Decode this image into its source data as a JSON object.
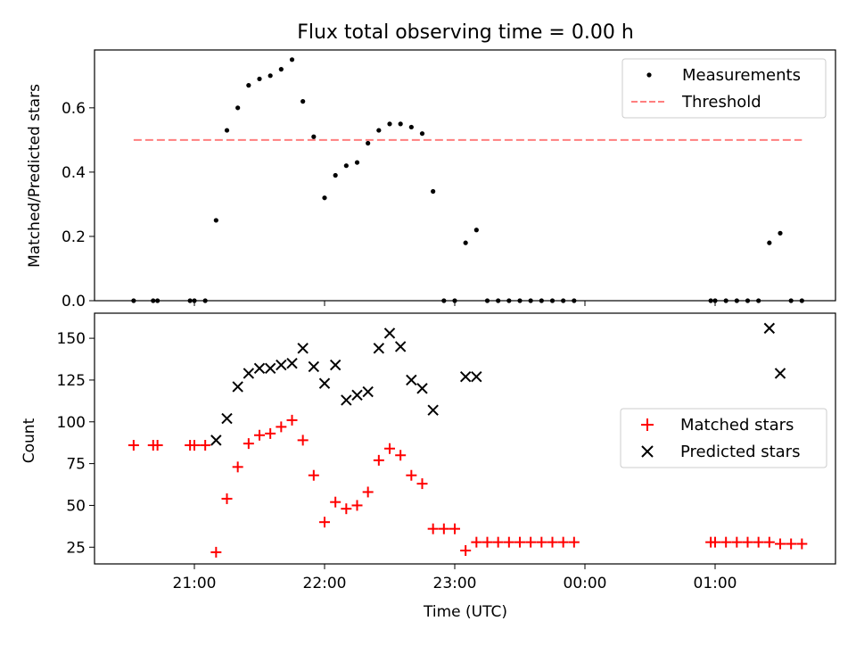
{
  "chart_data": [
    {
      "type": "scatter",
      "title": "Flux total observing time = 0.00 h",
      "ylabel": "Matched/Predicted stars",
      "xlabel": "",
      "ylim": [
        0,
        0.78
      ],
      "yticks": [
        "0.0",
        "0.2",
        "0.4",
        "0.6"
      ],
      "ytick_values": [
        0,
        0.2,
        0.4,
        0.6
      ],
      "legend": {
        "position": "top-right",
        "entries": [
          "Measurements",
          "Threshold"
        ]
      },
      "threshold": {
        "name": "Threshold",
        "value": 0.5,
        "x_from": "20:32",
        "x_to": "01:40",
        "color": "#ff7f7f",
        "style": "dashed"
      },
      "series": [
        {
          "name": "Measurements",
          "marker": "dot",
          "color": "#000000",
          "points": [
            [
              "20:32",
              0
            ],
            [
              "20:41",
              0
            ],
            [
              "20:43",
              0
            ],
            [
              "20:58",
              0
            ],
            [
              "21:00",
              0
            ],
            [
              "21:05",
              0
            ],
            [
              "21:10",
              0.25
            ],
            [
              "21:15",
              0.53
            ],
            [
              "21:20",
              0.6
            ],
            [
              "21:25",
              0.67
            ],
            [
              "21:30",
              0.69
            ],
            [
              "21:35",
              0.7
            ],
            [
              "21:40",
              0.72
            ],
            [
              "21:45",
              0.75
            ],
            [
              "21:50",
              0.62
            ],
            [
              "21:55",
              0.51
            ],
            [
              "22:00",
              0.32
            ],
            [
              "22:05",
              0.39
            ],
            [
              "22:10",
              0.42
            ],
            [
              "22:15",
              0.43
            ],
            [
              "22:20",
              0.49
            ],
            [
              "22:25",
              0.53
            ],
            [
              "22:30",
              0.55
            ],
            [
              "22:35",
              0.55
            ],
            [
              "22:40",
              0.54
            ],
            [
              "22:45",
              0.52
            ],
            [
              "22:50",
              0.34
            ],
            [
              "22:55",
              0
            ],
            [
              "23:00",
              0
            ],
            [
              "23:05",
              0.18
            ],
            [
              "23:10",
              0.22
            ],
            [
              "23:15",
              0
            ],
            [
              "23:20",
              0
            ],
            [
              "23:25",
              0
            ],
            [
              "23:30",
              0
            ],
            [
              "23:35",
              0
            ],
            [
              "23:40",
              0
            ],
            [
              "23:45",
              0
            ],
            [
              "23:50",
              0
            ],
            [
              "23:55",
              0
            ],
            [
              "00:58",
              0
            ],
            [
              "01:00",
              0
            ],
            [
              "01:05",
              0
            ],
            [
              "01:10",
              0
            ],
            [
              "01:15",
              0
            ],
            [
              "01:20",
              0
            ],
            [
              "01:25",
              0.18
            ],
            [
              "01:30",
              0.21
            ],
            [
              "01:35",
              0
            ],
            [
              "01:40",
              0
            ]
          ]
        }
      ]
    },
    {
      "type": "scatter",
      "title": "",
      "ylabel": "Count",
      "xlabel": "Time (UTC)",
      "ylim": [
        15,
        165
      ],
      "yticks": [
        "25",
        "50",
        "75",
        "100",
        "125",
        "150"
      ],
      "ytick_values": [
        25,
        50,
        75,
        100,
        125,
        150
      ],
      "xticks": [
        "21:00",
        "22:00",
        "23:00",
        "00:00",
        "01:00"
      ],
      "legend": {
        "position": "center-right",
        "entries": [
          "Matched stars",
          "Predicted stars"
        ]
      },
      "series": [
        {
          "name": "Matched stars",
          "marker": "plus",
          "color": "#ff0000",
          "points": [
            [
              "20:32",
              86
            ],
            [
              "20:41",
              86
            ],
            [
              "20:43",
              86
            ],
            [
              "20:58",
              86
            ],
            [
              "21:00",
              86
            ],
            [
              "21:05",
              86
            ],
            [
              "21:10",
              22
            ],
            [
              "21:15",
              54
            ],
            [
              "21:20",
              73
            ],
            [
              "21:25",
              87
            ],
            [
              "21:30",
              92
            ],
            [
              "21:35",
              93
            ],
            [
              "21:40",
              97
            ],
            [
              "21:45",
              101
            ],
            [
              "21:50",
              89
            ],
            [
              "21:55",
              68
            ],
            [
              "22:00",
              40
            ],
            [
              "22:05",
              52
            ],
            [
              "22:10",
              48
            ],
            [
              "22:15",
              50
            ],
            [
              "22:20",
              58
            ],
            [
              "22:25",
              77
            ],
            [
              "22:30",
              84
            ],
            [
              "22:35",
              80
            ],
            [
              "22:40",
              68
            ],
            [
              "22:45",
              63
            ],
            [
              "22:50",
              36
            ],
            [
              "22:55",
              36
            ],
            [
              "23:00",
              36
            ],
            [
              "23:05",
              23
            ],
            [
              "23:10",
              28
            ],
            [
              "23:15",
              28
            ],
            [
              "23:20",
              28
            ],
            [
              "23:25",
              28
            ],
            [
              "23:30",
              28
            ],
            [
              "23:35",
              28
            ],
            [
              "23:40",
              28
            ],
            [
              "23:45",
              28
            ],
            [
              "23:50",
              28
            ],
            [
              "23:55",
              28
            ],
            [
              "00:58",
              28
            ],
            [
              "01:00",
              28
            ],
            [
              "01:05",
              28
            ],
            [
              "01:10",
              28
            ],
            [
              "01:15",
              28
            ],
            [
              "01:20",
              28
            ],
            [
              "01:25",
              28
            ],
            [
              "01:30",
              27
            ],
            [
              "01:35",
              27
            ],
            [
              "01:40",
              27
            ]
          ]
        },
        {
          "name": "Predicted stars",
          "marker": "x",
          "color": "#000000",
          "points": [
            [
              "21:10",
              89
            ],
            [
              "21:15",
              102
            ],
            [
              "21:20",
              121
            ],
            [
              "21:25",
              129
            ],
            [
              "21:30",
              132
            ],
            [
              "21:35",
              132
            ],
            [
              "21:40",
              134
            ],
            [
              "21:45",
              135
            ],
            [
              "21:50",
              144
            ],
            [
              "21:55",
              133
            ],
            [
              "22:00",
              123
            ],
            [
              "22:05",
              134
            ],
            [
              "22:10",
              113
            ],
            [
              "22:15",
              116
            ],
            [
              "22:20",
              118
            ],
            [
              "22:25",
              144
            ],
            [
              "22:30",
              153
            ],
            [
              "22:35",
              145
            ],
            [
              "22:40",
              125
            ],
            [
              "22:45",
              120
            ],
            [
              "22:50",
              107
            ],
            [
              "23:05",
              127
            ],
            [
              "23:10",
              127
            ],
            [
              "01:25",
              156
            ],
            [
              "01:30",
              129
            ]
          ]
        }
      ]
    }
  ]
}
